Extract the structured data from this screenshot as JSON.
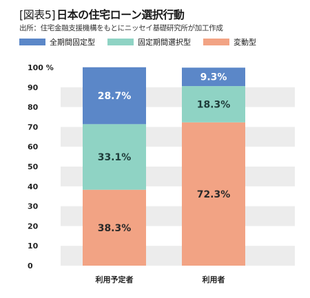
{
  "header": {
    "tag": "[図表5]",
    "title": "日本の住宅ローン選択行動",
    "source": "出所：住宅金融支援機構をもとにニッセイ基礎研究所が加工作成"
  },
  "colors": {
    "full_fixed": "#5b87c8",
    "fixed_period": "#8fd3c4",
    "variable": "#f2a384",
    "band": "#ececec"
  },
  "chart_data": {
    "type": "bar",
    "stacked": true,
    "categories": [
      "利用予定者",
      "利用者"
    ],
    "series": [
      {
        "name": "変動型",
        "values": [
          38.3,
          72.3
        ],
        "labels": [
          "38.3%",
          "72.3%"
        ]
      },
      {
        "name": "固定期間選択型",
        "values": [
          33.1,
          18.3
        ],
        "labels": [
          "33.1%",
          "18.3%"
        ]
      },
      {
        "name": "全期間固定型",
        "values": [
          28.7,
          9.3
        ],
        "labels": [
          "28.7%",
          "9.3%"
        ]
      }
    ],
    "legend_order": [
      "全期間固定型",
      "固定期間選択型",
      "変動型"
    ],
    "yticks": [
      "0",
      "10",
      "20",
      "30",
      "40",
      "50",
      "60",
      "70",
      "80",
      "90",
      "100 %"
    ],
    "ylim": [
      0,
      100
    ],
    "grid": "alternating horizontal bands",
    "legend_position": "top-left"
  }
}
